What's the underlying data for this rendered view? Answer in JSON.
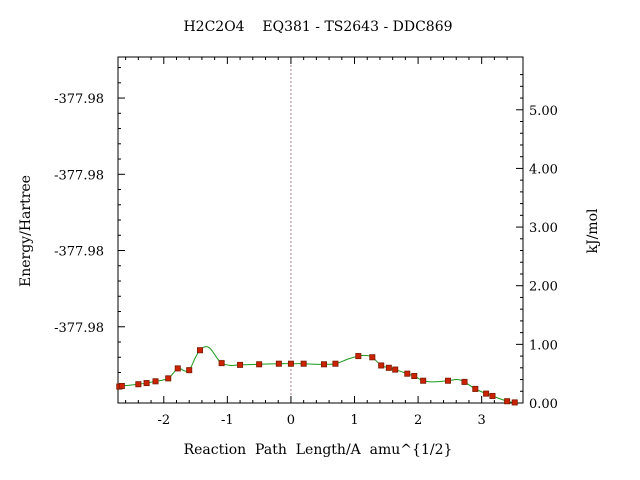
{
  "chart_data": {
    "type": "line",
    "title": "H2C2O4    EQ381 - TS2643 - DDC869",
    "xlabel": "Reaction  Path  Length/A  amu^{1/2}",
    "ylabel_left": "Energy/Hartree",
    "ylabel_right": "kJ/mol",
    "xlim": [
      -2.72,
      3.65
    ],
    "ylim_right": [
      0.0,
      5.9
    ],
    "x_ticks": [
      {
        "v": -2,
        "label": "-2"
      },
      {
        "v": -1,
        "label": "-1"
      },
      {
        "v": 0,
        "label": "0"
      },
      {
        "v": 1,
        "label": "1"
      },
      {
        "v": 2,
        "label": "2"
      },
      {
        "v": 3,
        "label": "3"
      }
    ],
    "left_ticks": [
      {
        "v": 5.2,
        "label": "-377.98"
      },
      {
        "v": 3.9,
        "label": "-377.98"
      },
      {
        "v": 2.6,
        "label": "-377.98"
      },
      {
        "v": 1.3,
        "label": "-377.98"
      }
    ],
    "right_ticks": [
      {
        "v": 0,
        "label": "0.00"
      },
      {
        "v": 1,
        "label": "1.00"
      },
      {
        "v": 2,
        "label": "2.00"
      },
      {
        "v": 3,
        "label": "3.00"
      },
      {
        "v": 4,
        "label": "4.00"
      },
      {
        "v": 5,
        "label": "5.00"
      }
    ],
    "ts_marker_x": 0,
    "colors": {
      "curve": "#1a9a1a",
      "points": "#cc2200",
      "point_edge": "#7a1a00",
      "ts_line": "#b08090",
      "axes": "#000000"
    },
    "points": [
      {
        "x": -2.7,
        "y": 0.28
      },
      {
        "x": -2.66,
        "y": 0.29
      },
      {
        "x": -2.4,
        "y": 0.32
      },
      {
        "x": -2.27,
        "y": 0.34
      },
      {
        "x": -2.13,
        "y": 0.37
      },
      {
        "x": -1.93,
        "y": 0.42
      },
      {
        "x": -1.78,
        "y": 0.59
      },
      {
        "x": -1.6,
        "y": 0.56
      },
      {
        "x": -1.43,
        "y": 0.9
      },
      {
        "x": -1.09,
        "y": 0.68
      },
      {
        "x": -0.8,
        "y": 0.65
      },
      {
        "x": -0.5,
        "y": 0.66
      },
      {
        "x": -0.19,
        "y": 0.67
      },
      {
        "x": 0.0,
        "y": 0.67
      },
      {
        "x": 0.2,
        "y": 0.67
      },
      {
        "x": 0.52,
        "y": 0.66
      },
      {
        "x": 0.7,
        "y": 0.67
      },
      {
        "x": 1.06,
        "y": 0.8
      },
      {
        "x": 1.28,
        "y": 0.78
      },
      {
        "x": 1.42,
        "y": 0.64
      },
      {
        "x": 1.54,
        "y": 0.6
      },
      {
        "x": 1.64,
        "y": 0.57
      },
      {
        "x": 1.83,
        "y": 0.5
      },
      {
        "x": 1.94,
        "y": 0.46
      },
      {
        "x": 2.08,
        "y": 0.38
      },
      {
        "x": 2.47,
        "y": 0.38
      },
      {
        "x": 2.73,
        "y": 0.36
      },
      {
        "x": 2.9,
        "y": 0.24
      },
      {
        "x": 3.07,
        "y": 0.16
      },
      {
        "x": 3.17,
        "y": 0.12
      },
      {
        "x": 3.4,
        "y": 0.03
      },
      {
        "x": 3.52,
        "y": 0.01
      }
    ],
    "curve": [
      {
        "x": -2.72,
        "y": 0.28
      },
      {
        "x": -2.66,
        "y": 0.29
      },
      {
        "x": -2.4,
        "y": 0.32
      },
      {
        "x": -2.27,
        "y": 0.34
      },
      {
        "x": -2.13,
        "y": 0.37
      },
      {
        "x": -1.93,
        "y": 0.42
      },
      {
        "x": -1.78,
        "y": 0.59
      },
      {
        "x": -1.68,
        "y": 0.55
      },
      {
        "x": -1.6,
        "y": 0.56
      },
      {
        "x": -1.5,
        "y": 0.78
      },
      {
        "x": -1.43,
        "y": 0.9
      },
      {
        "x": -1.35,
        "y": 0.96
      },
      {
        "x": -1.27,
        "y": 0.93
      },
      {
        "x": -1.17,
        "y": 0.78
      },
      {
        "x": -1.09,
        "y": 0.68
      },
      {
        "x": -0.95,
        "y": 0.64
      },
      {
        "x": -0.8,
        "y": 0.65
      },
      {
        "x": -0.5,
        "y": 0.66
      },
      {
        "x": -0.19,
        "y": 0.67
      },
      {
        "x": 0.0,
        "y": 0.67
      },
      {
        "x": 0.2,
        "y": 0.67
      },
      {
        "x": 0.38,
        "y": 0.66
      },
      {
        "x": 0.52,
        "y": 0.66
      },
      {
        "x": 0.7,
        "y": 0.67
      },
      {
        "x": 0.9,
        "y": 0.75
      },
      {
        "x": 1.06,
        "y": 0.8
      },
      {
        "x": 1.18,
        "y": 0.81
      },
      {
        "x": 1.28,
        "y": 0.78
      },
      {
        "x": 1.42,
        "y": 0.64
      },
      {
        "x": 1.54,
        "y": 0.6
      },
      {
        "x": 1.64,
        "y": 0.57
      },
      {
        "x": 1.83,
        "y": 0.5
      },
      {
        "x": 1.94,
        "y": 0.46
      },
      {
        "x": 2.08,
        "y": 0.38
      },
      {
        "x": 2.25,
        "y": 0.36
      },
      {
        "x": 2.47,
        "y": 0.38
      },
      {
        "x": 2.62,
        "y": 0.4
      },
      {
        "x": 2.73,
        "y": 0.36
      },
      {
        "x": 2.9,
        "y": 0.24
      },
      {
        "x": 3.07,
        "y": 0.16
      },
      {
        "x": 3.17,
        "y": 0.12
      },
      {
        "x": 3.4,
        "y": 0.03
      },
      {
        "x": 3.52,
        "y": 0.01
      },
      {
        "x": 3.56,
        "y": 0.0
      }
    ]
  }
}
